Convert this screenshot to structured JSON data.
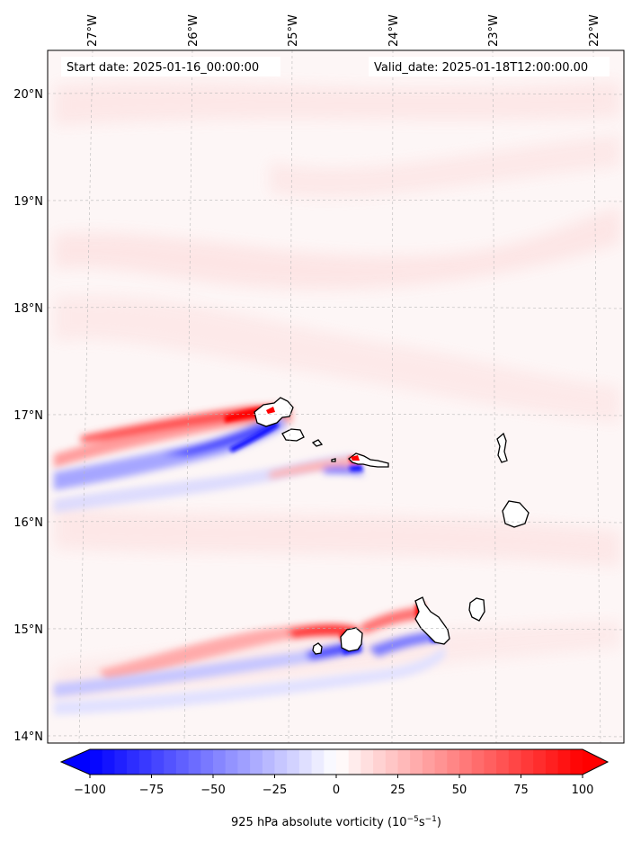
{
  "map": {
    "start_label": "Start date: 2025-01-16_00:00:00",
    "valid_label": "Valid_date: 2025-01-18T12:00:00.00",
    "lon_labels": [
      "27°W",
      "26°W",
      "25°W",
      "24°W",
      "23°W",
      "22°W"
    ],
    "lat_labels": [
      "20°N",
      "19°N",
      "18°N",
      "17°N",
      "16°N",
      "15°N",
      "14°N"
    ],
    "colorbar": {
      "ticks": [
        "−100",
        "−75",
        "−50",
        "−25",
        "0",
        "25",
        "50",
        "75",
        "100"
      ],
      "label_main": "925 hPa absolute vorticity (10",
      "label_sup1": "−5",
      "label_mid": "s",
      "label_sup2": "−1",
      "label_end": ")"
    }
  },
  "colors": {
    "negative": "#0000ff",
    "positive": "#ff0000",
    "zero": "#ffffff"
  }
}
